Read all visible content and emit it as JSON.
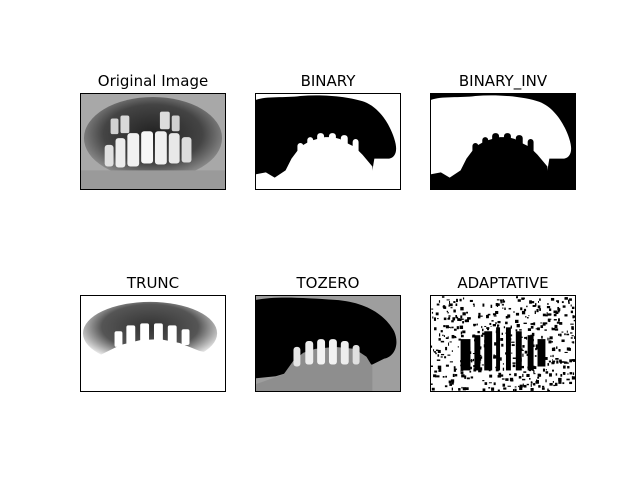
{
  "panels": [
    {
      "title": "Original Image",
      "style": "original"
    },
    {
      "title": "BINARY",
      "style": "binary"
    },
    {
      "title": "BINARY_INV",
      "style": "binary_inv"
    },
    {
      "title": "TRUNC",
      "style": "trunc"
    },
    {
      "title": "TOZERO",
      "style": "tozero"
    },
    {
      "title": "ADAPTATIVE",
      "style": "adaptive"
    }
  ]
}
